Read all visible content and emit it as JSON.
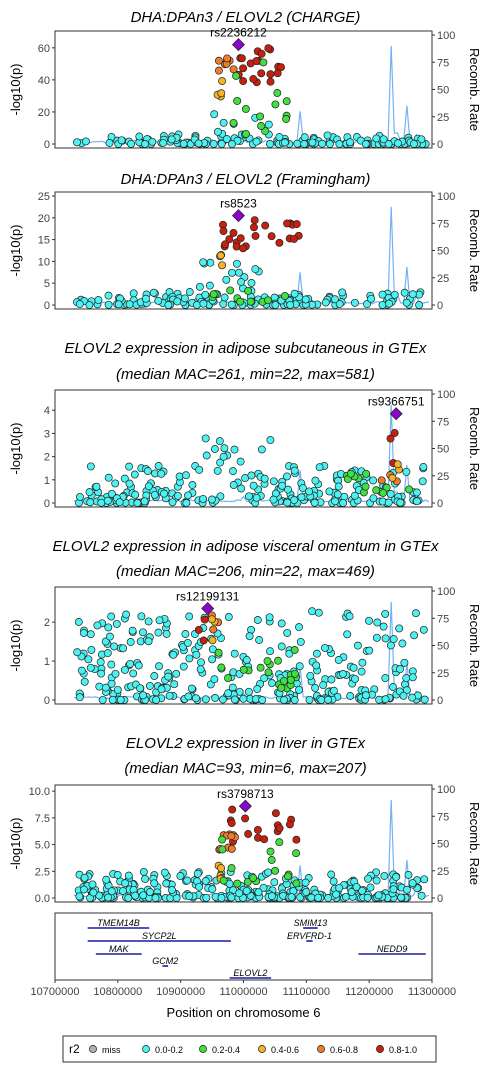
{
  "colors": {
    "miss": "#b0b0b0",
    "r2_0_0.2": "#4bf2f2",
    "r2_0.2_0.4": "#3fe03f",
    "r2_0.4_0.6": "#f7b322",
    "r2_0.6_0.8": "#ee7c2c",
    "r2_0.8_1.0": "#c7200f",
    "lead": "#8a06c9",
    "recomb": "#5aa6f0",
    "gene": "#1a1aa8"
  },
  "legend": {
    "title": "r2",
    "items": [
      {
        "label": "miss",
        "color": "#b0b0b0"
      },
      {
        "label": "0.0-0.2",
        "color": "#4bf2f2"
      },
      {
        "label": "0.2-0.4",
        "color": "#3fe03f"
      },
      {
        "label": "0.4-0.6",
        "color": "#f7b322"
      },
      {
        "label": "0.6-0.8",
        "color": "#ee7c2c"
      },
      {
        "label": "0.8-1.0",
        "color": "#c7200f"
      }
    ]
  },
  "x_axis": {
    "label": "Position on chromosome 6",
    "xlim": [
      10700000,
      11300000
    ],
    "ticks": [
      "10700000",
      "10800000",
      "10900000",
      "11000000",
      "11100000",
      "11200000",
      "11300000"
    ]
  },
  "chart_data": [
    {
      "type": "scatter",
      "title": "DHA:DPAn3 / ELOVL2 (CHARGE)",
      "subtitle": "",
      "ylabel": "-log10(p)",
      "y2label": "Recomb. Rate",
      "ylim": [
        0,
        68
      ],
      "yticks": [
        "0",
        "20",
        "40",
        "60"
      ],
      "y2ticks": [
        "0",
        "25",
        "50",
        "75",
        "100"
      ],
      "lead_snp": {
        "label": "rs2236212",
        "x": 10992000,
        "y": 62
      },
      "clusters": [
        {
          "r2": "0.8-1.0",
          "x": [
            10975000,
            11060000
          ],
          "y": [
            38,
            60
          ],
          "n": 20
        },
        {
          "r2": "0.6-0.8",
          "x": [
            10960000,
            10985000
          ],
          "y": [
            45,
            56
          ],
          "n": 8
        },
        {
          "r2": "0.4-0.6",
          "x": [
            10958000,
            10966000
          ],
          "y": [
            28,
            42
          ],
          "n": 4
        },
        {
          "r2": "0.2-0.4",
          "x": [
            10950000,
            11070000
          ],
          "y": [
            5,
            52
          ],
          "n": 14
        }
      ],
      "background": {
        "r2": "0.0-0.2",
        "ymax_far": 6,
        "ymax_peak": 20,
        "n": 150
      }
    },
    {
      "type": "scatter",
      "title": "DHA:DPAn3 / ELOVL2 (Framingham)",
      "subtitle": "",
      "ylabel": "-log10(p)",
      "y2label": "Recomb. Rate",
      "ylim": [
        0,
        25
      ],
      "yticks": [
        "0",
        "5",
        "10",
        "15",
        "20",
        "25"
      ],
      "y2ticks": [
        "0",
        "25",
        "50",
        "75",
        "100"
      ],
      "lead_snp": {
        "label": "rs8523",
        "x": 10992000,
        "y": 20.5
      },
      "clusters": [
        {
          "r2": "0.8-1.0",
          "x": [
            10965000,
            11090000
          ],
          "y": [
            13,
            20
          ],
          "n": 24
        },
        {
          "r2": "0.6-0.8",
          "x": [
            10962000,
            10968000
          ],
          "y": [
            11,
            13
          ],
          "n": 2
        },
        {
          "r2": "0.4-0.6",
          "x": [
            10962000,
            10968000
          ],
          "y": [
            7,
            12
          ],
          "n": 2
        },
        {
          "r2": "0.2-0.4",
          "x": [
            10945000,
            11070000
          ],
          "y": [
            0.5,
            4
          ],
          "n": 12
        }
      ],
      "background": {
        "r2": "0.0-0.2",
        "ymax_far": 3,
        "ymax_peak": 10,
        "n": 150
      }
    },
    {
      "type": "scatter",
      "title": "ELOVL2 expression in adipose subcutaneous in GTEx",
      "subtitle": "(median MAC=261, min=22, max=581)",
      "ylabel": "-log10(p)",
      "y2label": "Recomb. Rate",
      "ylim": [
        0,
        4.7
      ],
      "yticks": [
        "0",
        "1",
        "2",
        "3",
        "4"
      ],
      "y2ticks": [
        "0",
        "25",
        "50",
        "75",
        "100"
      ],
      "lead_snp": {
        "label": "rs9366751",
        "x": 11243000,
        "y": 3.85
      },
      "clusters": [
        {
          "r2": "0.8-1.0",
          "x": [
            11230000,
            11250000
          ],
          "y": [
            1.6,
            3.6
          ],
          "n": 3
        },
        {
          "r2": "0.6-0.8",
          "x": [
            11210000,
            11250000
          ],
          "y": [
            0.8,
            1.8
          ],
          "n": 3
        },
        {
          "r2": "0.4-0.6",
          "x": [
            11230000,
            11255000
          ],
          "y": [
            1.0,
            1.8
          ],
          "n": 3
        },
        {
          "r2": "0.2-0.4",
          "x": [
            11150000,
            11265000
          ],
          "y": [
            0.3,
            1.4
          ],
          "n": 12
        }
      ],
      "background": {
        "r2": "0.0-0.2",
        "ymax_far": 1.6,
        "ymax_peak": 2.8,
        "n": 220
      }
    },
    {
      "type": "scatter",
      "title": "ELOVL2 expression in adipose visceral omentum in GTEx",
      "subtitle": "(median MAC=206, min=22, max=469)",
      "ylabel": "-log10(p)",
      "y2label": "Recomb. Rate",
      "ylim": [
        0,
        2.8
      ],
      "yticks": [
        "0",
        "1",
        "2"
      ],
      "y2ticks": [
        "0",
        "25",
        "50",
        "75",
        "100"
      ],
      "lead_snp": {
        "label": "rs12199131",
        "x": 10943000,
        "y": 2.35
      },
      "clusters": [
        {
          "r2": "0.8-1.0",
          "x": [
            10925000,
            10950000
          ],
          "y": [
            1.3,
            2.3
          ],
          "n": 3
        },
        {
          "r2": "0.6-0.8",
          "x": [
            10945000,
            10965000
          ],
          "y": [
            1.8,
            2.2
          ],
          "n": 3
        },
        {
          "r2": "0.4-0.6",
          "x": [
            10945000,
            10960000
          ],
          "y": [
            1.3,
            2.1
          ],
          "n": 3
        },
        {
          "r2": "0.2-0.4",
          "x": [
            10960000,
            11090000
          ],
          "y": [
            0.2,
            1.3
          ],
          "n": 20
        }
      ],
      "background": {
        "r2": "0.0-0.2",
        "ymax_far": 2.3,
        "ymax_peak": 2.3,
        "n": 320
      }
    },
    {
      "type": "scatter",
      "title": "ELOVL2 expression in liver in GTEx",
      "subtitle": "(median MAC=93, min=6, max=207)",
      "ylabel": "-log10(p)",
      "y2label": "Recomb. Rate",
      "ylim": [
        0,
        10.2
      ],
      "yticks": [
        "0.0",
        "2.5",
        "5.0",
        "7.5",
        "10.0"
      ],
      "y2ticks": [
        "0",
        "25",
        "50",
        "75",
        "100"
      ],
      "lead_snp": {
        "label": "rs3798713",
        "x": 11003000,
        "y": 8.6
      },
      "clusters": [
        {
          "r2": "0.8-1.0",
          "x": [
            10975000,
            11085000
          ],
          "y": [
            5.2,
            8.4
          ],
          "n": 16
        },
        {
          "r2": "0.6-0.8",
          "x": [
            10960000,
            10990000
          ],
          "y": [
            4.5,
            6.0
          ],
          "n": 10
        },
        {
          "r2": "0.4-0.6",
          "x": [
            10958000,
            10966000
          ],
          "y": [
            1.5,
            3.2
          ],
          "n": 5
        },
        {
          "r2": "0.2-0.4",
          "x": [
            10955000,
            11085000
          ],
          "y": [
            1.0,
            5.5
          ],
          "n": 16
        }
      ],
      "background": {
        "r2": "0.0-0.2",
        "ymax_far": 2.5,
        "ymax_peak": 2.5,
        "n": 300
      }
    }
  ],
  "genes": [
    {
      "name": "TMEM14B",
      "start": 10752000,
      "end": 10850000,
      "row": 0
    },
    {
      "name": "SMIM13",
      "start": 11095000,
      "end": 11118000,
      "row": 0
    },
    {
      "name": "SYCP2L",
      "start": 10752000,
      "end": 10980000,
      "row": 1
    },
    {
      "name": "ERVFRD-1",
      "start": 11100000,
      "end": 11110000,
      "row": 1
    },
    {
      "name": "MAK",
      "start": 10765000,
      "end": 10838000,
      "row": 2
    },
    {
      "name": "NEDD9",
      "start": 11183000,
      "end": 11290000,
      "row": 2
    },
    {
      "name": "GCM2",
      "start": 10871000,
      "end": 10880000,
      "row": 3
    },
    {
      "name": "ELOVL2",
      "start": 10978000,
      "end": 11044000,
      "row": 4
    }
  ]
}
